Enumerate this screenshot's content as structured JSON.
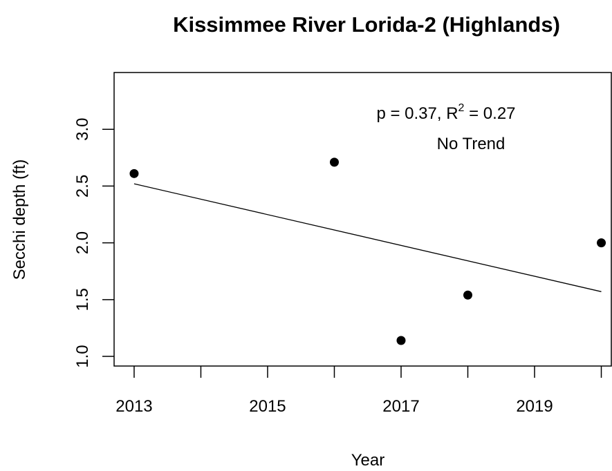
{
  "chart_data": {
    "type": "scatter",
    "title": "Kissimmee River Lorida-2 (Highlands)",
    "xlabel": "Year",
    "ylabel": "Secchi depth (ft)",
    "x": [
      2013,
      2016,
      2017,
      2018,
      2020
    ],
    "values": [
      2.61,
      2.71,
      1.14,
      1.54,
      2.0
    ],
    "color": "#000000",
    "trend": {
      "x": [
        2013,
        2020
      ],
      "values": [
        2.52,
        1.57
      ],
      "color": "#000000"
    },
    "annotation": [
      "p = 0.37, R",
      "2",
      " = 0.27"
    ],
    "annotation2": "No Trend",
    "xlim": [
      2012.7,
      2020.15
    ],
    "xticks": [
      2013,
      2015,
      2017,
      2019
    ],
    "xminor_ticks": [
      2014,
      2016,
      2018,
      2020
    ],
    "ylim": [
      0.915,
      3.5
    ],
    "yticks": [
      {
        "value": 1,
        "label": "1.0"
      },
      1.5,
      {
        "value": 2,
        "label": "2.0"
      },
      2.5,
      {
        "value": 3,
        "label": "3.0"
      }
    ],
    "grid": false
  }
}
